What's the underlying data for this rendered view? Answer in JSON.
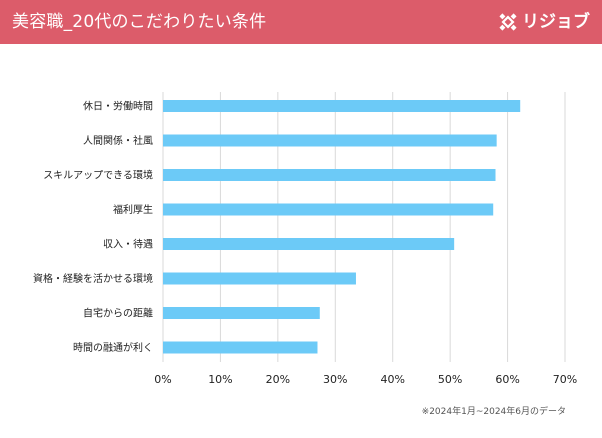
{
  "header": {
    "title": "美容職_20代のこだわりたい条件",
    "logo_text": "リジョブ"
  },
  "footnote": "※2024年1月~2024年6月のデータ",
  "colors": {
    "header": "#dc5c6a",
    "bar": "#6ccaf7",
    "grid": "#d9d9d9"
  },
  "chart_data": {
    "type": "bar",
    "orientation": "horizontal",
    "title": "",
    "xlabel": "",
    "ylabel": "",
    "categories": [
      "休日・労働時間",
      "人間関係・社風",
      "スキルアップできる環境",
      "福利厚生",
      "収入・待遇",
      "資格・経験を活かせる環境",
      "自宅からの距離",
      "時間の融通が利く"
    ],
    "values": [
      62.2,
      58.1,
      57.9,
      57.5,
      50.7,
      33.6,
      27.3,
      26.9
    ],
    "value_unit": "%",
    "xlim": [
      0,
      70
    ],
    "xticks": [
      0,
      10,
      20,
      30,
      40,
      50,
      60,
      70
    ],
    "xtick_labels": [
      "0%",
      "10%",
      "20%",
      "30%",
      "40%",
      "50%",
      "60%",
      "70%"
    ],
    "grid": "vertical",
    "legend": "none"
  }
}
